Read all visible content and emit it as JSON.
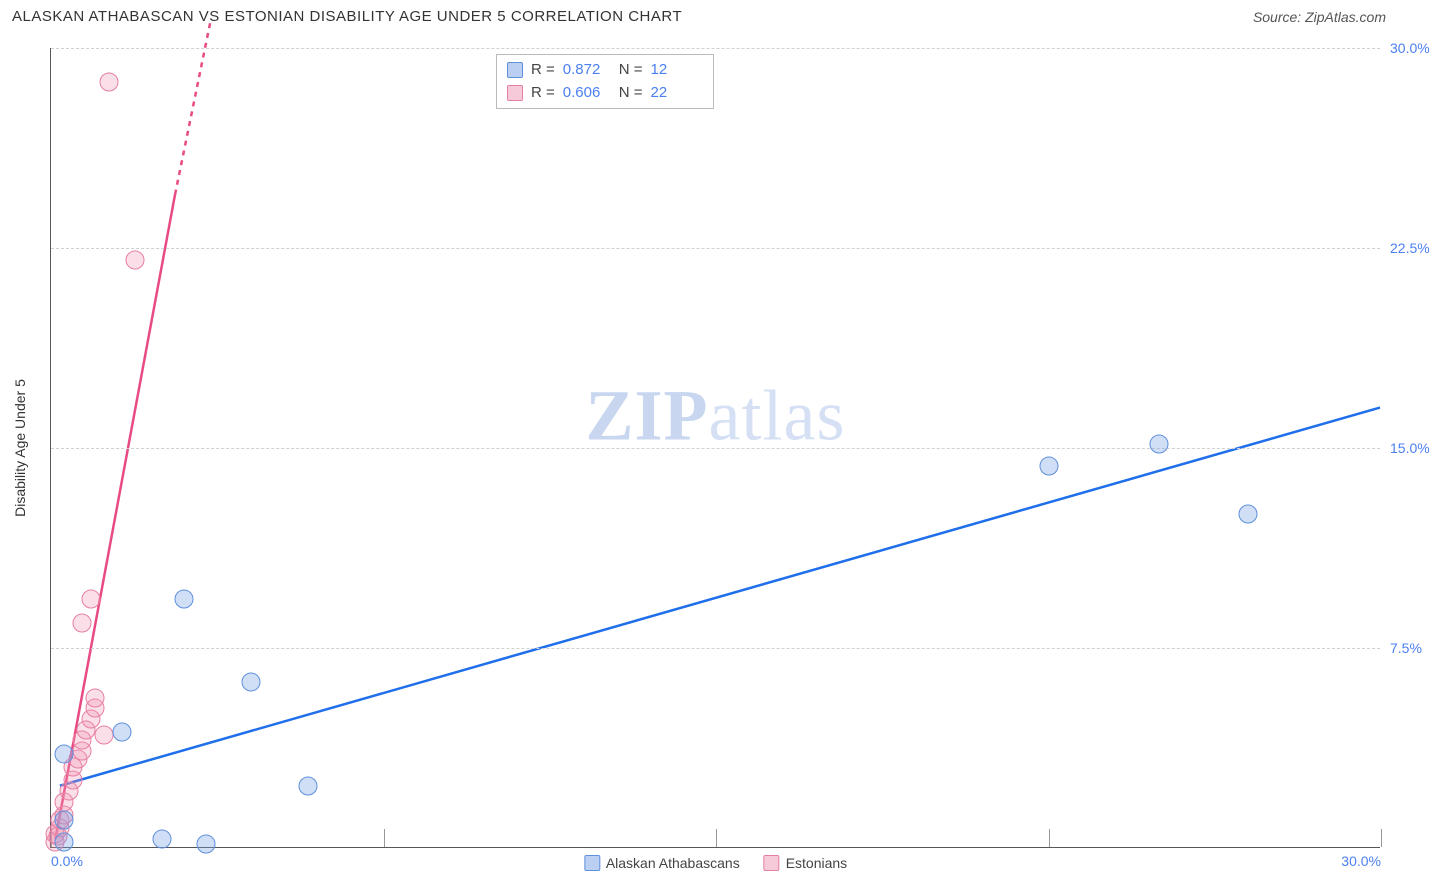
{
  "header": {
    "title": "ALASKAN ATHABASCAN VS ESTONIAN DISABILITY AGE UNDER 5 CORRELATION CHART",
    "source": "Source: ZipAtlas.com"
  },
  "chart": {
    "type": "scatter",
    "y_axis_label": "Disability Age Under 5",
    "background_color": "#ffffff",
    "grid_color": "#d0d0d0",
    "axis_color": "#555555",
    "tick_label_color": "#4b7ff2",
    "tick_fontsize": 14,
    "xlim": [
      0,
      30
    ],
    "ylim": [
      0,
      30
    ],
    "x_ticks": [
      0,
      7.5,
      15,
      22.5,
      30
    ],
    "y_ticks": [
      7.5,
      15,
      22.5,
      30
    ],
    "x_tick_labels_visible": {
      "min": "0.0%",
      "max": "30.0%"
    },
    "y_tick_labels": [
      "7.5%",
      "15.0%",
      "22.5%",
      "30.0%"
    ],
    "marker_size": 19,
    "marker_fill_opacity": 0.35,
    "series": [
      {
        "name": "Alaskan Athabascans",
        "color_fill": "#78a0e6",
        "color_stroke": "#5e90dc",
        "trend_color": "#1f6feb",
        "trend_width": 2.5,
        "trend": {
          "x1": 0.2,
          "y1": 2.3,
          "x2": 30,
          "y2": 16.5
        },
        "points": [
          {
            "x": 0.3,
            "y": 0.2
          },
          {
            "x": 0.3,
            "y": 1.0
          },
          {
            "x": 0.3,
            "y": 3.5
          },
          {
            "x": 2.5,
            "y": 0.3
          },
          {
            "x": 3.5,
            "y": 0.1
          },
          {
            "x": 1.6,
            "y": 4.3
          },
          {
            "x": 4.5,
            "y": 6.2
          },
          {
            "x": 3.0,
            "y": 9.3
          },
          {
            "x": 5.8,
            "y": 2.3
          },
          {
            "x": 22.5,
            "y": 14.3
          },
          {
            "x": 25.0,
            "y": 15.1
          },
          {
            "x": 27.0,
            "y": 12.5
          }
        ]
      },
      {
        "name": "Estonians",
        "color_fill": "#f096b4",
        "color_stroke": "#e77fa3",
        "trend_color": "#e84b84",
        "trend_width": 2.5,
        "trend_solid": {
          "x1": 0.1,
          "y1": 0.3,
          "x2": 2.8,
          "y2": 24.5
        },
        "trend_dashed": {
          "x1": 2.8,
          "y1": 24.5,
          "x2": 3.6,
          "y2": 31.0
        },
        "points": [
          {
            "x": 0.1,
            "y": 0.2
          },
          {
            "x": 0.1,
            "y": 0.5
          },
          {
            "x": 0.2,
            "y": 0.7
          },
          {
            "x": 0.2,
            "y": 1.0
          },
          {
            "x": 0.3,
            "y": 1.2
          },
          {
            "x": 0.15,
            "y": 0.4
          },
          {
            "x": 0.3,
            "y": 1.7
          },
          {
            "x": 0.4,
            "y": 2.1
          },
          {
            "x": 0.5,
            "y": 2.5
          },
          {
            "x": 0.5,
            "y": 3.0
          },
          {
            "x": 0.6,
            "y": 3.3
          },
          {
            "x": 0.7,
            "y": 3.6
          },
          {
            "x": 0.7,
            "y": 4.0
          },
          {
            "x": 0.8,
            "y": 4.4
          },
          {
            "x": 0.9,
            "y": 4.8
          },
          {
            "x": 1.0,
            "y": 5.2
          },
          {
            "x": 1.0,
            "y": 5.6
          },
          {
            "x": 1.2,
            "y": 4.2
          },
          {
            "x": 0.7,
            "y": 8.4
          },
          {
            "x": 0.9,
            "y": 9.3
          },
          {
            "x": 1.9,
            "y": 22.0
          },
          {
            "x": 1.3,
            "y": 28.7
          }
        ]
      }
    ],
    "stats": [
      {
        "swatch": "blue",
        "r_label": "R = ",
        "r": "0.872",
        "n_label": "N = ",
        "n": "12"
      },
      {
        "swatch": "pink",
        "r_label": "R = ",
        "r": "0.606",
        "n_label": "N = ",
        "n": "22"
      }
    ],
    "bottom_legend": [
      {
        "swatch": "blue",
        "label": "Alaskan Athabascans"
      },
      {
        "swatch": "pink",
        "label": "Estonians"
      }
    ],
    "watermark": {
      "zip": "ZIP",
      "atlas": "atlas"
    }
  }
}
